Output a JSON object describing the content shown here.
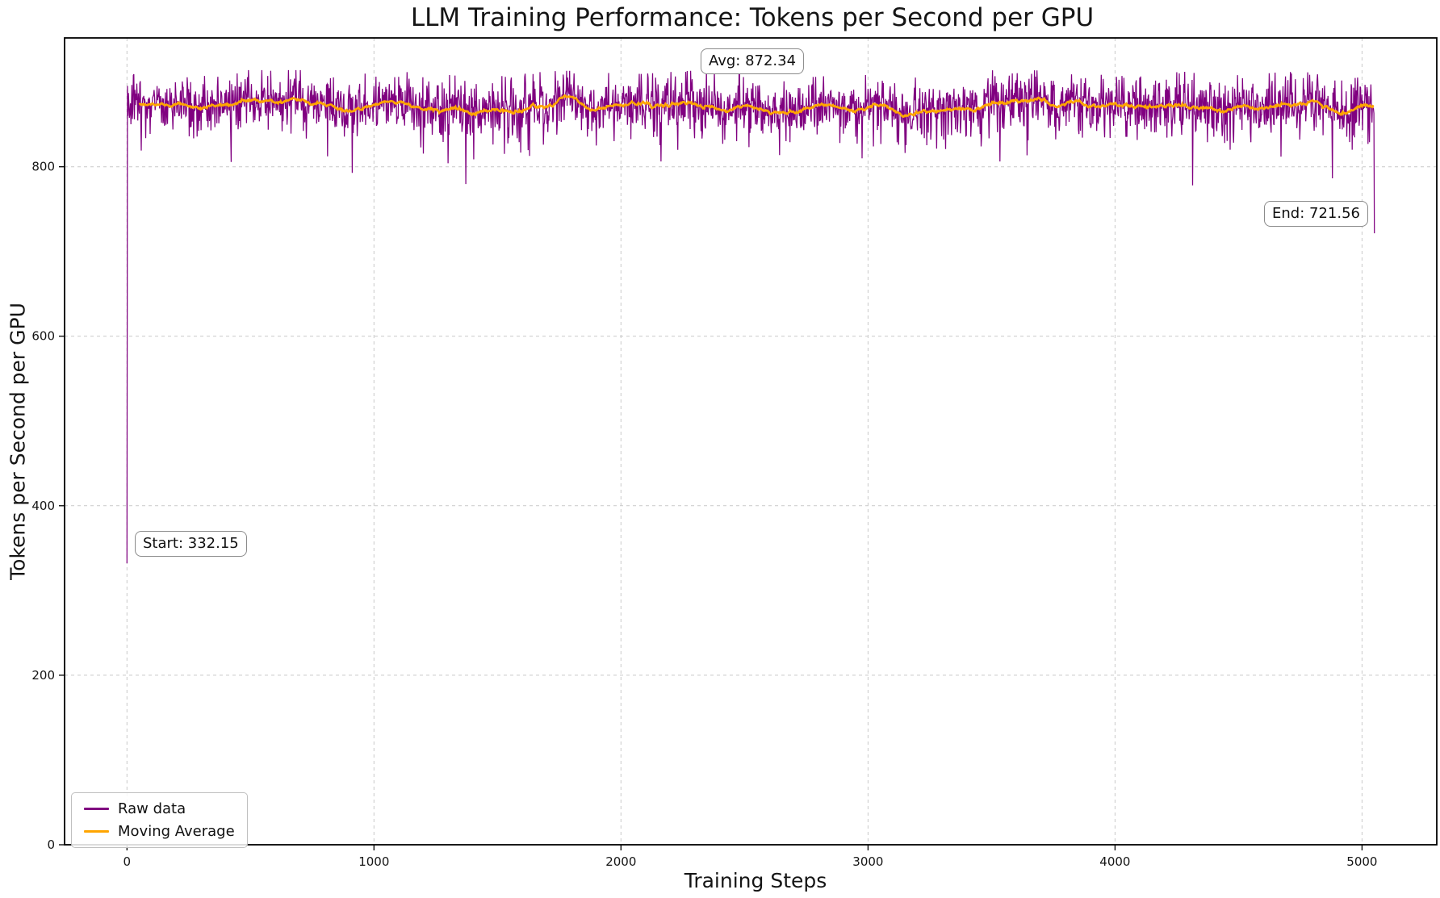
{
  "chart_data": {
    "type": "line",
    "title": "LLM Training Performance: Tokens per Second per GPU",
    "xlabel": "Training Steps",
    "ylabel": "Tokens per Second per GPU",
    "xlim": [
      -252.5,
      5302.5
    ],
    "ylim": [
      0,
      952
    ],
    "xticks": [
      0,
      1000,
      2000,
      3000,
      4000,
      5000
    ],
    "yticks": [
      0,
      200,
      400,
      600,
      800
    ],
    "grid": {
      "visible": true,
      "line_style": "dashed",
      "color": "#c9c9c9"
    },
    "background": "#ffffff",
    "series": [
      {
        "name": "Raw data",
        "color": "#800080",
        "style": "noisy line",
        "x_range": [
          0,
          5050
        ],
        "start_value": 332.15,
        "end_value": 721.56,
        "mean_value": 872.34,
        "typical_band": [
          830,
          912
        ],
        "occasional_dips_to": [
          778,
          805
        ],
        "noise_std": 17,
        "n_points": 2526,
        "seed": 7
      },
      {
        "name": "Moving Average",
        "color": "#FFA500",
        "style": "smooth line",
        "window_steps": 80,
        "approx_range": [
          865,
          880
        ]
      }
    ],
    "annotations": [
      {
        "id": "avg",
        "text": "Avg: 872.34",
        "value": 872.34,
        "position": "top-center"
      },
      {
        "id": "end",
        "text": "End: 721.56",
        "value": 721.56,
        "position": "right-of-final-drop"
      },
      {
        "id": "start",
        "text": "Start: 332.15",
        "value": 332.15,
        "position": "next-to-start-point"
      }
    ],
    "legend": {
      "location": "lower left",
      "entries": [
        {
          "label": "Raw data",
          "color": "#800080"
        },
        {
          "label": "Moving Average",
          "color": "#FFA500"
        }
      ]
    }
  }
}
